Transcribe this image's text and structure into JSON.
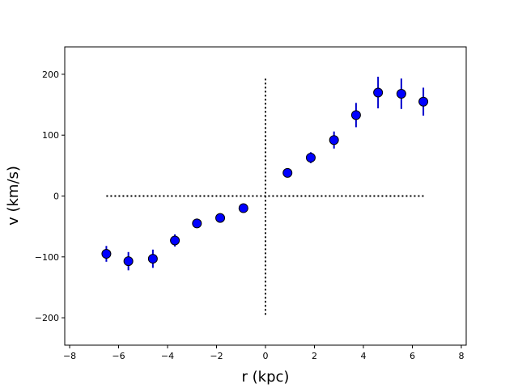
{
  "chart_data": {
    "type": "scatter",
    "title": "",
    "xlabel": "r (kpc)",
    "ylabel": "v (km/s)",
    "xlim": [
      -8.2,
      8.2
    ],
    "ylim": [
      -245,
      245
    ],
    "xticks": [
      -8,
      -6,
      -4,
      -2,
      0,
      2,
      4,
      6,
      8
    ],
    "yticks": [
      -200,
      -100,
      0,
      100,
      200
    ],
    "xtick_labels": [
      "−8",
      "−6",
      "−4",
      "−2",
      "0",
      "2",
      "4",
      "6",
      "8"
    ],
    "ytick_labels": [
      "−200",
      "−100",
      "0",
      "100",
      "200"
    ],
    "grid": false,
    "marker_color": "#0000ff",
    "edge_color": "#000000",
    "errorbar_color": "#0000cc",
    "series": [
      {
        "x": [
          -6.5,
          -5.6,
          -4.6,
          -3.7,
          -2.8,
          -1.85,
          -0.9,
          0.9,
          1.85,
          2.8,
          3.7,
          4.6,
          5.55,
          6.45
        ],
        "y": [
          -95,
          -107,
          -103,
          -73,
          -45,
          -36,
          -20,
          38,
          63,
          92,
          133,
          170,
          168,
          155
        ],
        "yerr": [
          13,
          15,
          15,
          10,
          5,
          4,
          4,
          4,
          9,
          14,
          20,
          26,
          25,
          23
        ]
      }
    ],
    "reference_lines": [
      {
        "orientation": "horizontal",
        "value": 0,
        "from": -6.5,
        "to": 6.5,
        "style": "dotted"
      },
      {
        "orientation": "vertical",
        "value": 0,
        "from": -195,
        "to": 195,
        "style": "dotted"
      }
    ]
  }
}
